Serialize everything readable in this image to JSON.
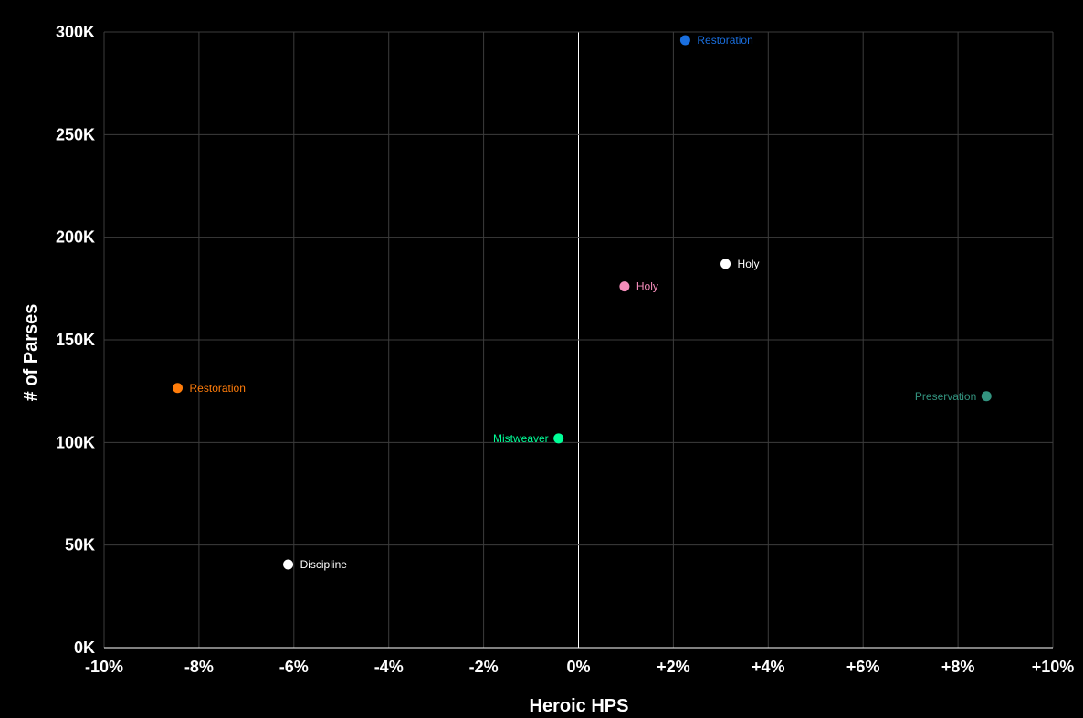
{
  "chart_data": {
    "type": "scatter",
    "xlabel": "Heroic HPS",
    "ylabel": "# of Parses",
    "xlim": [
      -10,
      10
    ],
    "ylim": [
      0,
      300000
    ],
    "x_ticks": [
      {
        "value": -10,
        "label": "-10%"
      },
      {
        "value": -8,
        "label": "-8%"
      },
      {
        "value": -6,
        "label": "-6%"
      },
      {
        "value": -4,
        "label": "-4%"
      },
      {
        "value": -2,
        "label": "-2%"
      },
      {
        "value": 0,
        "label": "0%"
      },
      {
        "value": 2,
        "label": "+2%"
      },
      {
        "value": 4,
        "label": "+4%"
      },
      {
        "value": 6,
        "label": "+6%"
      },
      {
        "value": 8,
        "label": "+8%"
      },
      {
        "value": 10,
        "label": "+10%"
      }
    ],
    "y_ticks": [
      {
        "value": 0,
        "label": "0K"
      },
      {
        "value": 50000,
        "label": "50K"
      },
      {
        "value": 100000,
        "label": "100K"
      },
      {
        "value": 150000,
        "label": "150K"
      },
      {
        "value": 200000,
        "label": "200K"
      },
      {
        "value": 250000,
        "label": "250K"
      },
      {
        "value": 300000,
        "label": "300K"
      }
    ],
    "grid": true,
    "points": [
      {
        "label": "Restoration",
        "x": 2.25,
        "y": 296000,
        "color": "#1a6fdf",
        "label_side": "right"
      },
      {
        "label": "Holy",
        "x": 3.1,
        "y": 187000,
        "color": "#ffffff",
        "label_side": "right"
      },
      {
        "label": "Holy",
        "x": 0.97,
        "y": 176000,
        "color": "#f48cba",
        "label_side": "right"
      },
      {
        "label": "Restoration",
        "x": -8.45,
        "y": 126500,
        "color": "#ff7c0a",
        "label_side": "right"
      },
      {
        "label": "Preservation",
        "x": 8.6,
        "y": 122500,
        "color": "#33937f",
        "label_side": "left"
      },
      {
        "label": "Mistweaver",
        "x": -0.42,
        "y": 102000,
        "color": "#00ff98",
        "label_side": "left"
      },
      {
        "label": "Discipline",
        "x": -6.12,
        "y": 40500,
        "color": "#ffffff",
        "label_side": "right"
      }
    ]
  }
}
